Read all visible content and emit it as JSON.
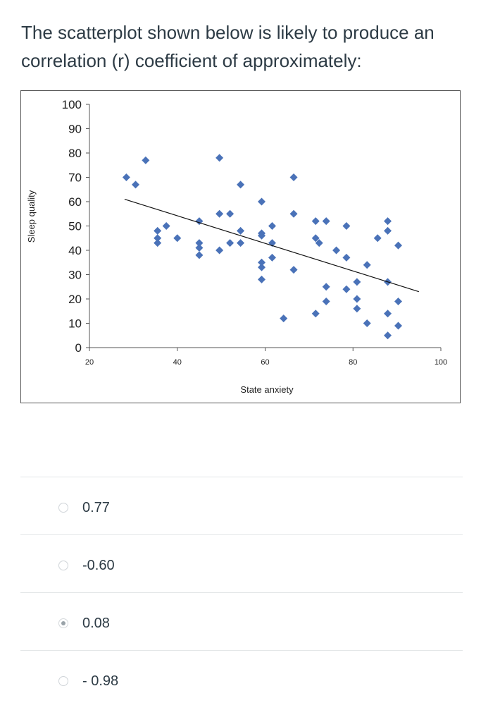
{
  "question": {
    "text": "The scatterplot shown below is likely to produce an correlation (r) coefficient of approximately:"
  },
  "chart_data": {
    "type": "scatter",
    "xlabel": "State anxiety",
    "ylabel": "Sleep quality",
    "xlim": [
      20,
      100
    ],
    "ylim": [
      0,
      100
    ],
    "x_ticks": [
      "20",
      "40",
      "60",
      "80",
      "100"
    ],
    "y_ticks": [
      "0",
      "10",
      "20",
      "30",
      "40",
      "50",
      "60",
      "70",
      "80",
      "90",
      "100"
    ],
    "marker_color": "#4a72b8",
    "trendline": {
      "x": [
        28,
        95
      ],
      "y": [
        61,
        23
      ]
    },
    "points": [
      {
        "x": 28.4,
        "y": 70
      },
      {
        "x": 30.5,
        "y": 67
      },
      {
        "x": 32.8,
        "y": 77
      },
      {
        "x": 35.5,
        "y": 48
      },
      {
        "x": 35.5,
        "y": 45
      },
      {
        "x": 35.5,
        "y": 43
      },
      {
        "x": 37.5,
        "y": 50
      },
      {
        "x": 40,
        "y": 45
      },
      {
        "x": 45,
        "y": 52
      },
      {
        "x": 45,
        "y": 43
      },
      {
        "x": 45,
        "y": 41
      },
      {
        "x": 45,
        "y": 38
      },
      {
        "x": 49.6,
        "y": 78
      },
      {
        "x": 49.6,
        "y": 55
      },
      {
        "x": 49.6,
        "y": 40
      },
      {
        "x": 52,
        "y": 55
      },
      {
        "x": 52,
        "y": 43
      },
      {
        "x": 54.4,
        "y": 67
      },
      {
        "x": 54.4,
        "y": 48
      },
      {
        "x": 54.4,
        "y": 43
      },
      {
        "x": 59.2,
        "y": 60
      },
      {
        "x": 59.2,
        "y": 47
      },
      {
        "x": 59.2,
        "y": 46
      },
      {
        "x": 59.2,
        "y": 35
      },
      {
        "x": 59.2,
        "y": 33
      },
      {
        "x": 59.2,
        "y": 28
      },
      {
        "x": 61.6,
        "y": 50
      },
      {
        "x": 61.6,
        "y": 43
      },
      {
        "x": 61.6,
        "y": 37
      },
      {
        "x": 64.2,
        "y": 12
      },
      {
        "x": 66.5,
        "y": 70
      },
      {
        "x": 66.5,
        "y": 55
      },
      {
        "x": 66.5,
        "y": 32
      },
      {
        "x": 71.5,
        "y": 52
      },
      {
        "x": 71.5,
        "y": 45
      },
      {
        "x": 71.5,
        "y": 14
      },
      {
        "x": 72.3,
        "y": 43
      },
      {
        "x": 73.9,
        "y": 52
      },
      {
        "x": 73.9,
        "y": 25
      },
      {
        "x": 73.9,
        "y": 19
      },
      {
        "x": 76.2,
        "y": 40
      },
      {
        "x": 78.5,
        "y": 50
      },
      {
        "x": 78.5,
        "y": 37
      },
      {
        "x": 78.5,
        "y": 24
      },
      {
        "x": 80.9,
        "y": 27
      },
      {
        "x": 80.9,
        "y": 20
      },
      {
        "x": 80.9,
        "y": 16
      },
      {
        "x": 83.2,
        "y": 34
      },
      {
        "x": 83.2,
        "y": 10
      },
      {
        "x": 85.6,
        "y": 45
      },
      {
        "x": 87.9,
        "y": 52
      },
      {
        "x": 87.9,
        "y": 48
      },
      {
        "x": 87.9,
        "y": 27
      },
      {
        "x": 87.9,
        "y": 14
      },
      {
        "x": 87.9,
        "y": 5
      },
      {
        "x": 90.3,
        "y": 42
      },
      {
        "x": 90.3,
        "y": 19
      },
      {
        "x": 90.3,
        "y": 9
      }
    ]
  },
  "answers": {
    "options": [
      {
        "label": "0.77",
        "selected": false
      },
      {
        "label": "-0.60",
        "selected": false
      },
      {
        "label": "0.08",
        "selected": true
      },
      {
        "label": "- 0.98",
        "selected": false
      }
    ]
  }
}
